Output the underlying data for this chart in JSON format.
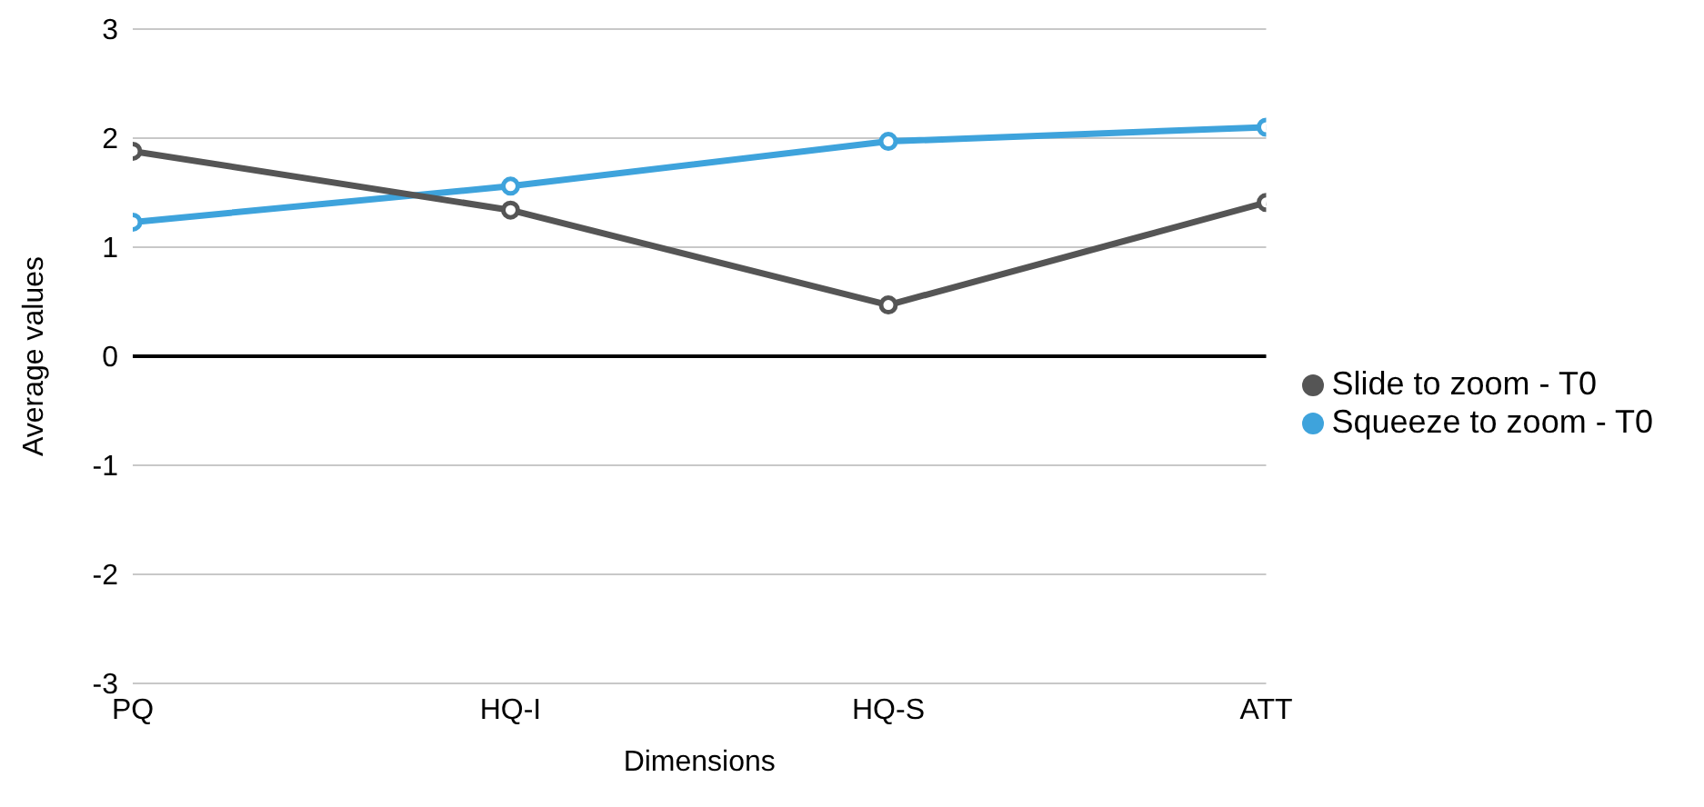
{
  "chart_data": {
    "type": "line",
    "xlabel": "Dimensions",
    "ylabel": "Average values",
    "categories": [
      "PQ",
      "HQ-I",
      "HQ-S",
      "ATT"
    ],
    "series": [
      {
        "name": "Squeeze to zoom - T0",
        "color": "#3ea3dc",
        "values": [
          1.23,
          1.56,
          1.97,
          2.1
        ]
      },
      {
        "name": "Slide to zoom - T0",
        "color": "#555555",
        "values": [
          1.88,
          1.34,
          0.47,
          1.41
        ]
      }
    ],
    "ylim": [
      -3,
      3
    ],
    "yticks": [
      -3,
      -2,
      -1,
      0,
      1,
      2,
      3
    ],
    "grid": "y",
    "legend": "right",
    "marker": "circle",
    "line_style": "solid",
    "ref_lines": [
      {
        "axis": "y",
        "value": 0,
        "color": "#000000"
      }
    ]
  }
}
